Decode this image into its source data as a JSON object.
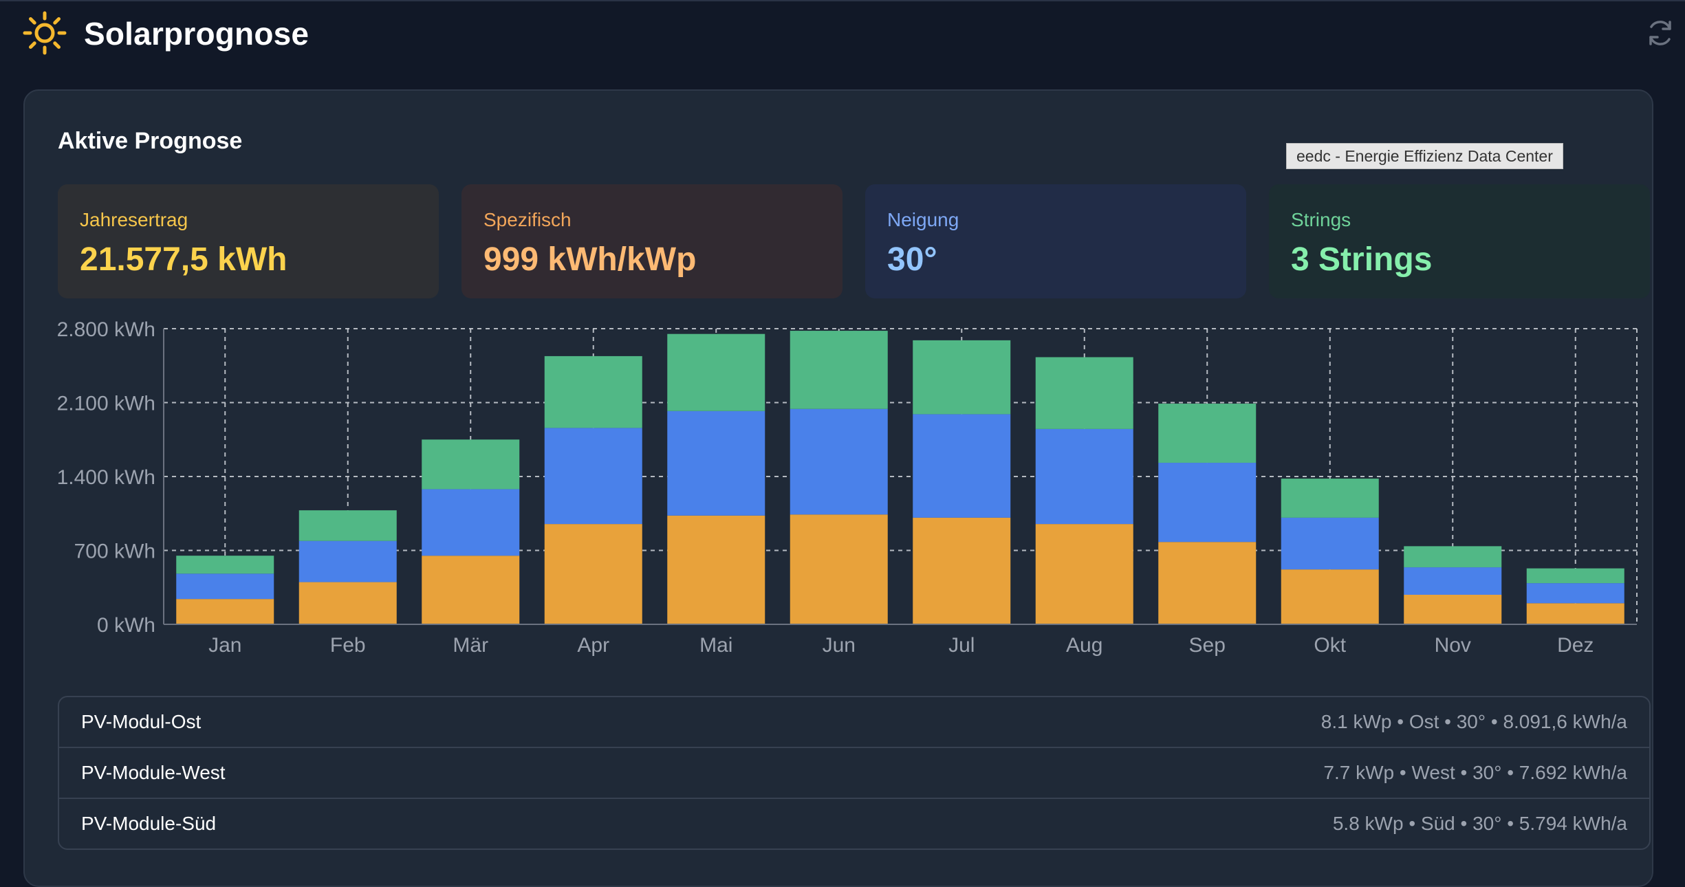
{
  "header": {
    "title": "Solarprognose",
    "icon": "sun-icon",
    "refresh_icon": "refresh-icon"
  },
  "section": {
    "title": "Aktive Prognose"
  },
  "tooltip": "eedc - Energie Effizienz Data Center",
  "stats": [
    {
      "label": "Jahresertrag",
      "value": "21.577,5 kWh",
      "label_color": "#f6c64b",
      "value_color": "#fcd34d"
    },
    {
      "label": "Spezifisch",
      "value": "999 kWh/kWp",
      "label_color": "#f2a65a",
      "value_color": "#fdba74"
    },
    {
      "label": "Neigung",
      "value": "30°",
      "label_color": "#7ea8f5",
      "value_color": "#93c5fd"
    },
    {
      "label": "Strings",
      "value": "3 Strings",
      "label_color": "#6fd39a",
      "value_color": "#86efac"
    }
  ],
  "chart_data": {
    "type": "bar",
    "stacked": true,
    "categories": [
      "Jan",
      "Feb",
      "Mär",
      "Apr",
      "Mai",
      "Jun",
      "Jul",
      "Aug",
      "Sep",
      "Okt",
      "Nov",
      "Dez"
    ],
    "series": [
      {
        "color": "#e8a23b",
        "values": [
          240,
          400,
          650,
          950,
          1030,
          1040,
          1010,
          950,
          780,
          520,
          280,
          200
        ]
      },
      {
        "color": "#4a81ea",
        "values": [
          240,
          390,
          630,
          910,
          990,
          1000,
          980,
          900,
          750,
          490,
          260,
          190
        ]
      },
      {
        "color": "#51b886",
        "values": [
          170,
          290,
          470,
          680,
          730,
          740,
          700,
          680,
          560,
          370,
          200,
          140
        ]
      }
    ],
    "y_ticks": [
      "0 kWh",
      "700 kWh",
      "1.400 kWh",
      "2.100 kWh",
      "2.800 kWh"
    ],
    "ylim": [
      0,
      2800
    ],
    "grid": true
  },
  "strings_list": [
    {
      "name": "PV-Modul-Ost",
      "details": "8.1 kWp • Ost • 30° • 8.091,6 kWh/a"
    },
    {
      "name": "PV-Module-West",
      "details": "7.7 kWp • West • 30° • 7.692 kWh/a"
    },
    {
      "name": "PV-Module-Süd",
      "details": "5.8 kWp • Süd • 30° • 5.794 kWh/a"
    }
  ]
}
